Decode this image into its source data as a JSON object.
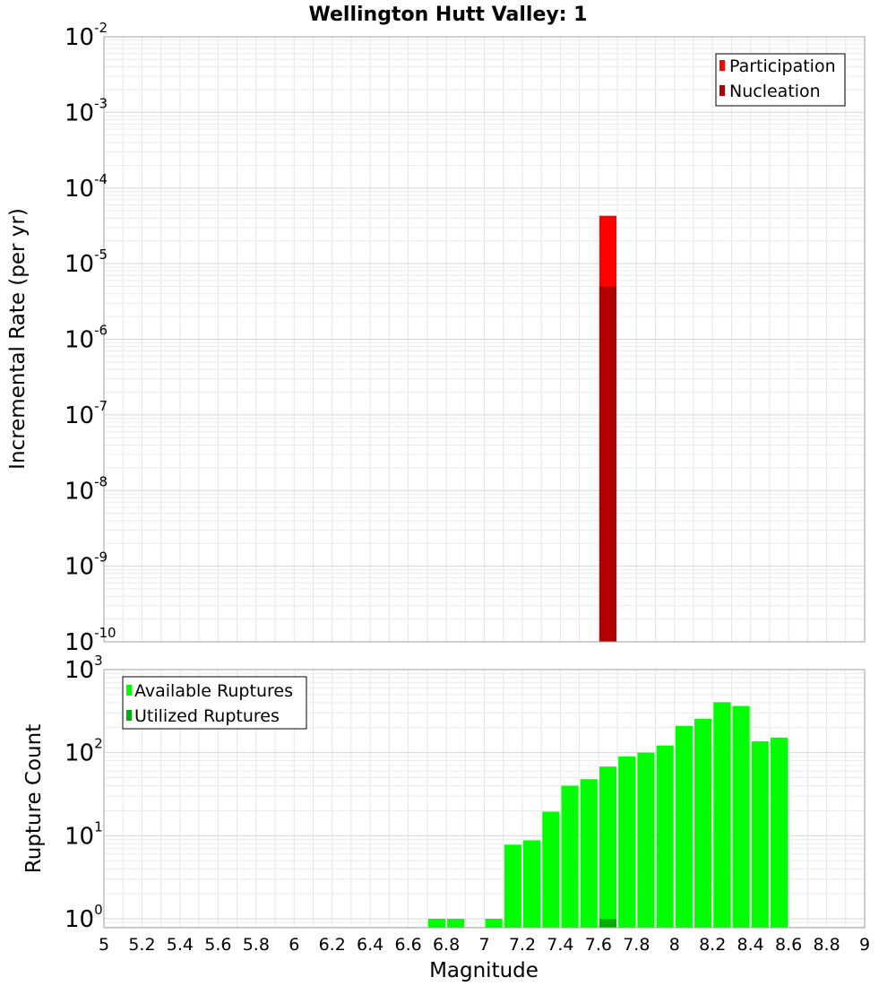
{
  "chart_data": [
    {
      "id": "top",
      "type": "bar",
      "scale": "log",
      "title": "Wellington Hutt Valley: 1",
      "xlabel": "Magnitude",
      "ylabel": "Incremental Rate (per yr)",
      "xlim": [
        5,
        9
      ],
      "ylim": [
        1e-10,
        0.01
      ],
      "ytick_exponents": [
        "-10",
        "-9",
        "-8",
        "-7",
        "-6",
        "-5",
        "-4",
        "-3",
        "-2"
      ],
      "ytick_base": "10",
      "grid": true,
      "legend": {
        "placement": "top-right",
        "entries": [
          {
            "label": "Participation",
            "color": "#ff0000"
          },
          {
            "label": "Nucleation",
            "color": "#b00000"
          }
        ]
      },
      "series": [
        {
          "name": "Participation",
          "color": "#ff0000",
          "bar_width": 0.09,
          "points": [
            {
              "x": 7.65,
              "y": 4.3e-05
            }
          ]
        },
        {
          "name": "Nucleation",
          "color": "#b00000",
          "bar_width": 0.09,
          "points": [
            {
              "x": 7.65,
              "y": 5e-06
            }
          ]
        }
      ]
    },
    {
      "id": "bottom",
      "type": "bar",
      "scale": "log",
      "xlabel": "Magnitude",
      "ylabel": "Rupture Count",
      "xlim": [
        5,
        9
      ],
      "ylim": [
        0.78,
        1000
      ],
      "xticks": [
        "5",
        "5.2",
        "5.4",
        "5.6",
        "5.8",
        "6",
        "6.2",
        "6.4",
        "6.6",
        "6.8",
        "7",
        "7.2",
        "7.4",
        "7.6",
        "7.8",
        "8",
        "8.2",
        "8.4",
        "8.6",
        "8.8",
        "9"
      ],
      "ytick_exponents": [
        "0",
        "1",
        "2",
        "3"
      ],
      "ytick_base": "10",
      "grid": true,
      "legend": {
        "placement": "top-left",
        "entries": [
          {
            "label": "Available Ruptures",
            "color": "#00ff00"
          },
          {
            "label": "Utilized Ruptures",
            "color": "#00b000"
          }
        ]
      },
      "series": [
        {
          "name": "Available Ruptures",
          "color": "#00ff00",
          "bar_width": 0.09,
          "points": [
            {
              "x": 6.75,
              "y": 1
            },
            {
              "x": 6.85,
              "y": 1
            },
            {
              "x": 7.05,
              "y": 1
            },
            {
              "x": 7.15,
              "y": 7.8
            },
            {
              "x": 7.25,
              "y": 8.8
            },
            {
              "x": 7.35,
              "y": 19.5
            },
            {
              "x": 7.45,
              "y": 40
            },
            {
              "x": 7.55,
              "y": 48
            },
            {
              "x": 7.65,
              "y": 68
            },
            {
              "x": 7.75,
              "y": 90
            },
            {
              "x": 7.85,
              "y": 100
            },
            {
              "x": 7.95,
              "y": 122
            },
            {
              "x": 8.05,
              "y": 210
            },
            {
              "x": 8.15,
              "y": 255
            },
            {
              "x": 8.25,
              "y": 405
            },
            {
              "x": 8.35,
              "y": 365
            },
            {
              "x": 8.45,
              "y": 137
            },
            {
              "x": 8.55,
              "y": 152
            }
          ]
        },
        {
          "name": "Utilized Ruptures",
          "color": "#00b000",
          "bar_width": 0.09,
          "points": [
            {
              "x": 7.65,
              "y": 1
            }
          ]
        }
      ]
    }
  ]
}
